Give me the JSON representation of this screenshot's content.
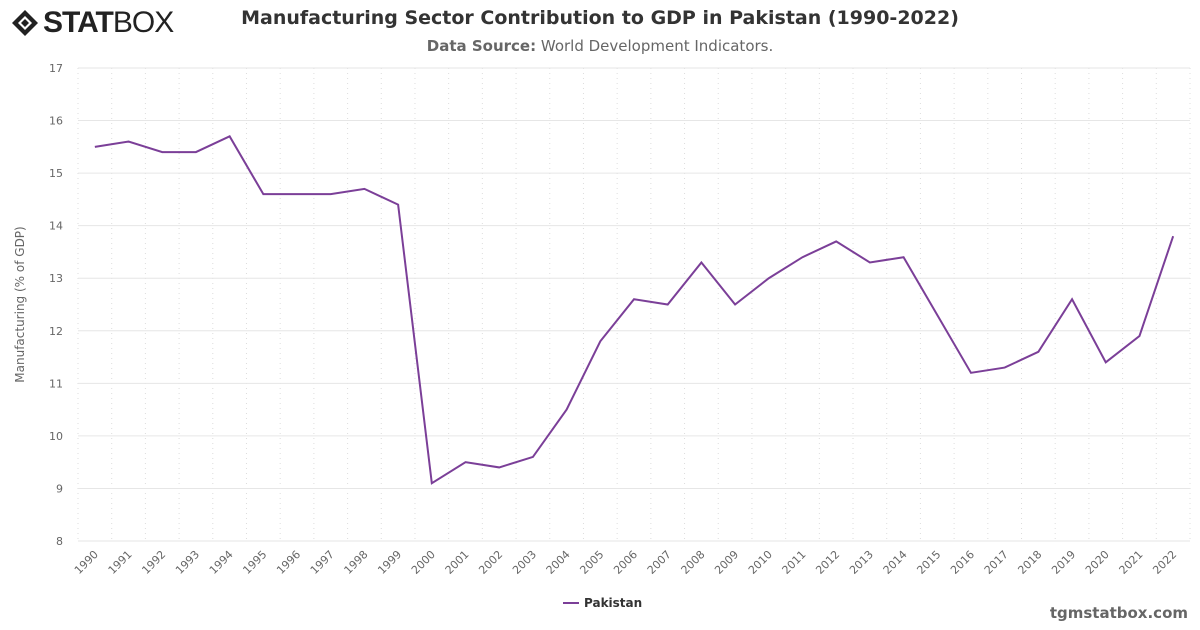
{
  "logo": {
    "text_bold": "STAT",
    "text_light": "BOX"
  },
  "header": {
    "title": "Manufacturing Sector Contribution to GDP in Pakistan (1990-2022)",
    "source_label": "Data Source:",
    "source_value": "World Development Indicators."
  },
  "credit": "tgmstatbox.com",
  "chart_data": {
    "type": "line",
    "title": "Manufacturing Sector Contribution to GDP in Pakistan (1990-2022)",
    "ylabel": "Manufacturing (% of GDP)",
    "xlabel": "",
    "ylim": [
      8,
      17
    ],
    "yticks": [
      8,
      9,
      10,
      11,
      12,
      13,
      14,
      15,
      16,
      17
    ],
    "grid": true,
    "legend": "bottom-center",
    "categories": [
      "1990",
      "1991",
      "1992",
      "1993",
      "1994",
      "1995",
      "1996",
      "1997",
      "1998",
      "1999",
      "2000",
      "2001",
      "2002",
      "2003",
      "2004",
      "2005",
      "2006",
      "2007",
      "2008",
      "2009",
      "2010",
      "2011",
      "2012",
      "2013",
      "2014",
      "2015",
      "2016",
      "2017",
      "2018",
      "2019",
      "2020",
      "2021",
      "2022"
    ],
    "series": [
      {
        "name": "Pakistan",
        "color": "#7b3f98",
        "values": [
          15.5,
          15.6,
          15.4,
          15.4,
          15.7,
          14.6,
          14.6,
          14.6,
          14.7,
          14.4,
          9.1,
          9.5,
          9.4,
          9.6,
          10.5,
          11.8,
          12.6,
          12.5,
          13.3,
          12.5,
          13.0,
          13.4,
          13.7,
          13.3,
          13.4,
          12.3,
          11.2,
          11.3,
          11.6,
          12.6,
          11.4,
          11.9,
          13.8
        ]
      }
    ]
  }
}
